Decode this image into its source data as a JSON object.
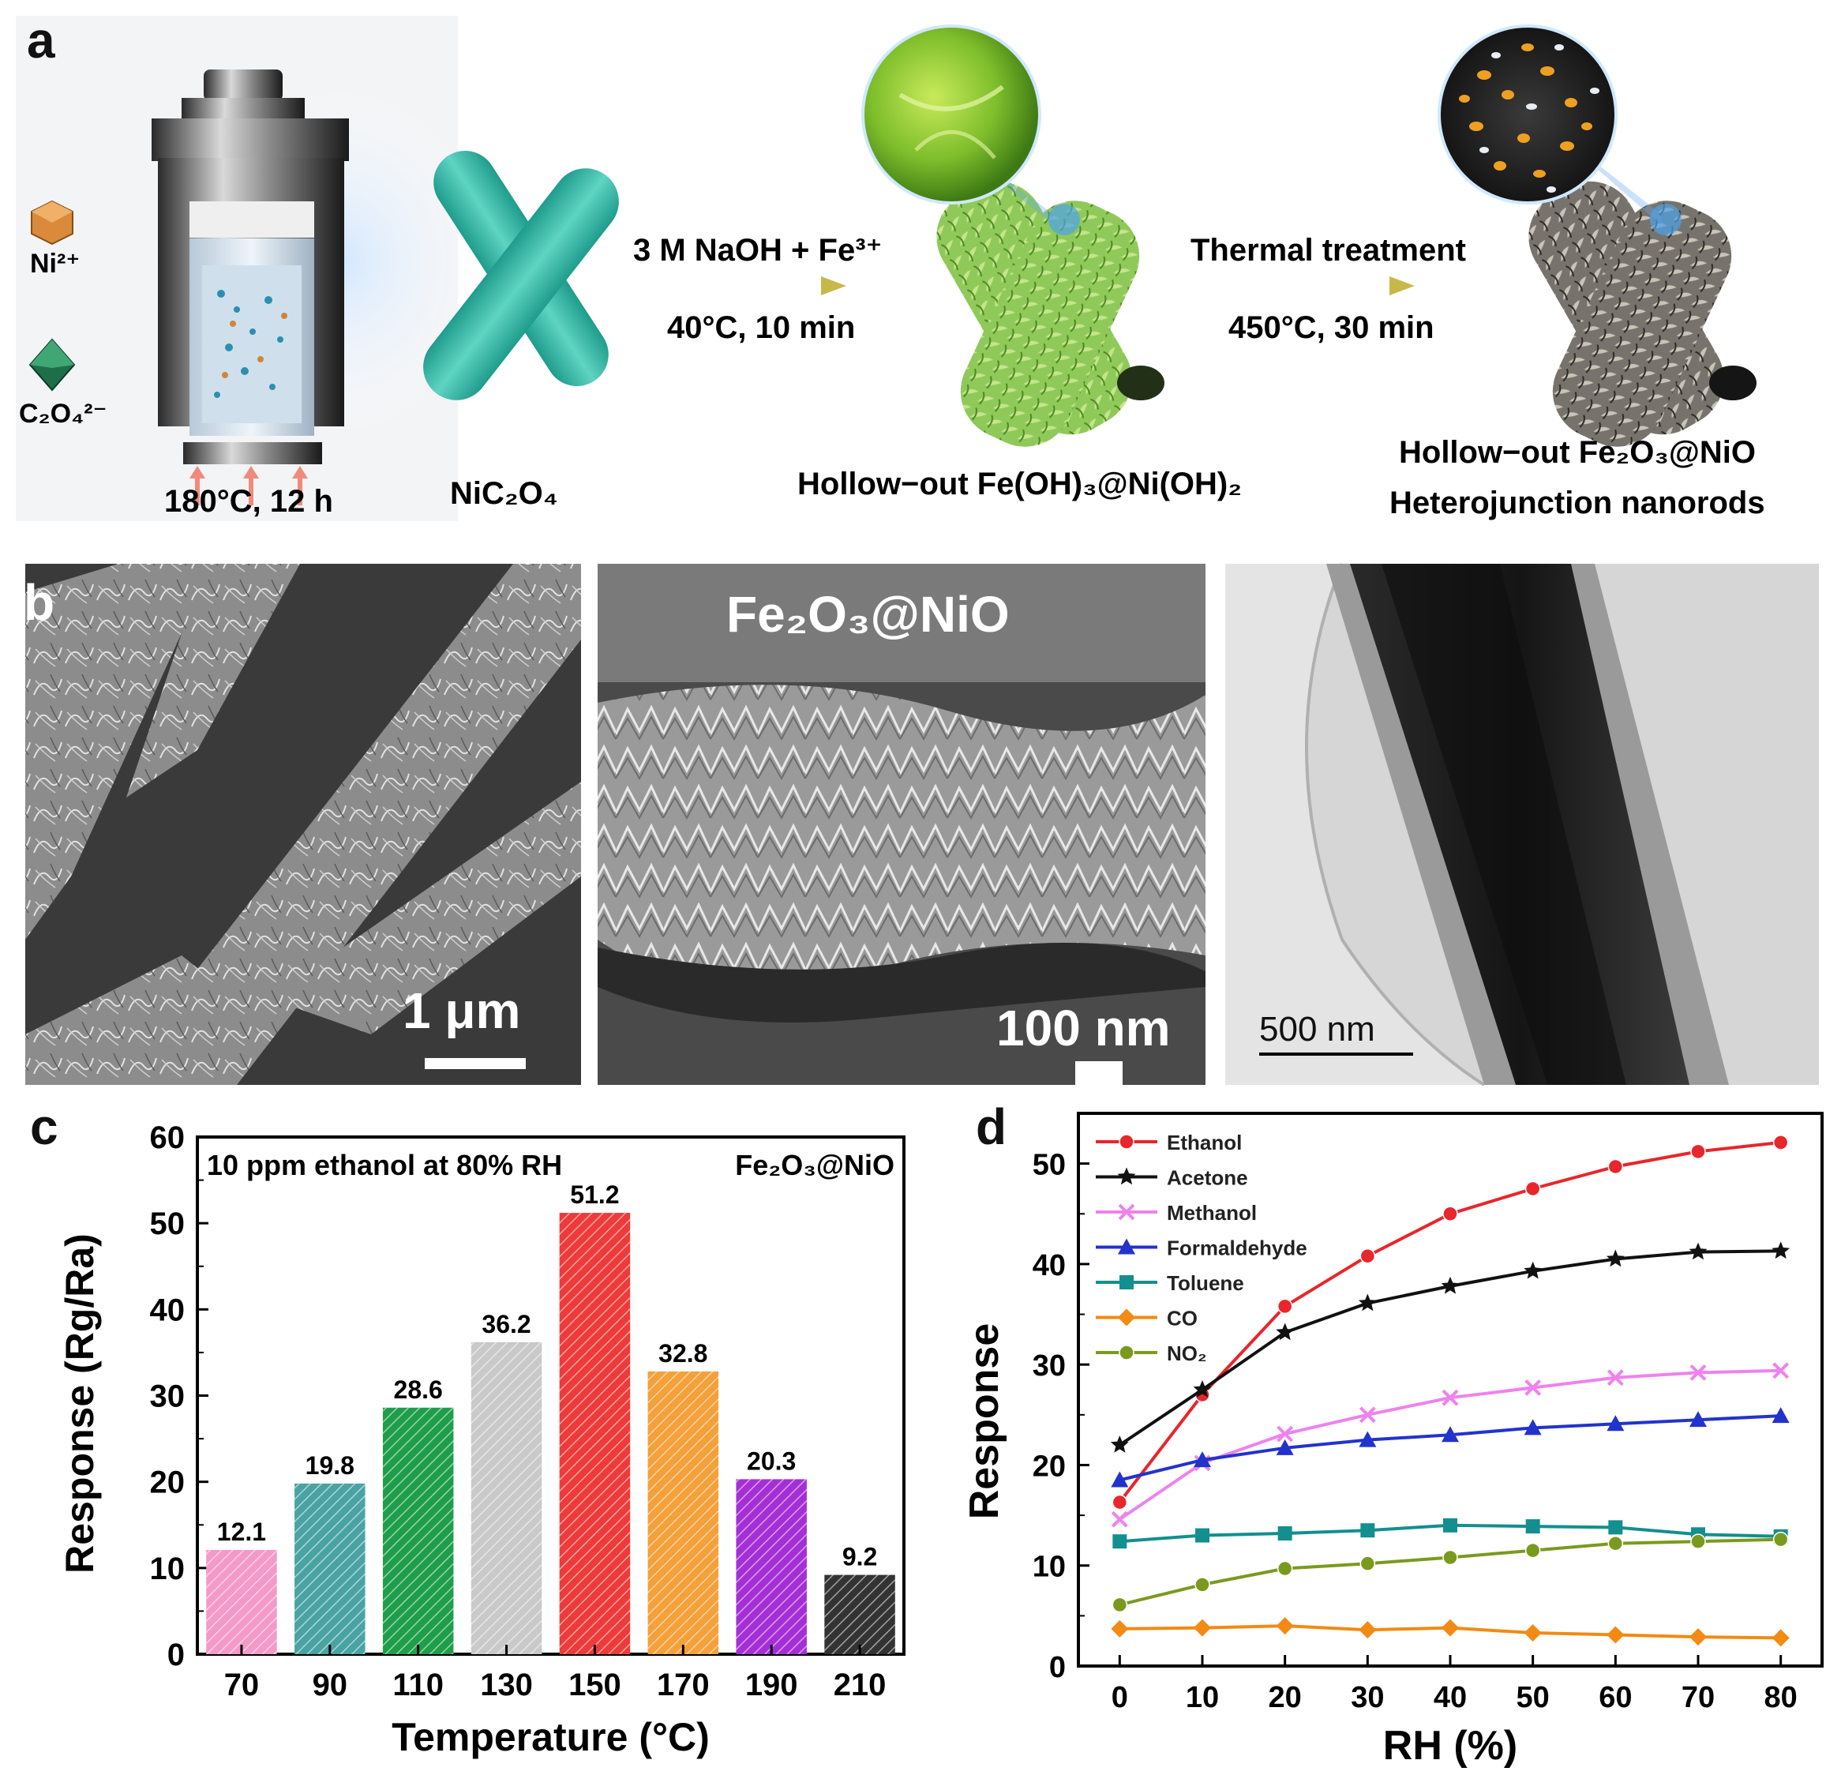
{
  "panels": {
    "a": "a",
    "b": "b",
    "c": "c",
    "d": "d"
  },
  "panel_a": {
    "ion_ni": "Ni²⁺",
    "ion_c2o4": "C₂O₄²⁻",
    "autoclave_condition": "180°C, 12 h",
    "rod_label": "NiC₂O₄",
    "step1_top": "3 M NaOH + Fe³⁺",
    "step1_bottom": "40°C, 10 min",
    "product1": "Hollow−out Fe(OH)₃@Ni(OH)₂",
    "step2_top": "Thermal treatment",
    "step2_bottom": "450°C, 30 min",
    "product2_line1": "Hollow−out Fe₂O₃@NiO",
    "product2_line2": "Heterojunction nanorods",
    "colors": {
      "rod": "#2cb5a5",
      "hydroxide": "#7fbf3c",
      "oxide": "#6b6b66",
      "dot_orange": "#f0a020",
      "arrow": "#c8b84a"
    }
  },
  "panel_b": {
    "sem1_scale": "1 μm",
    "sem2_title": "Fe₂O₃@NiO",
    "sem2_scale": "100 nm",
    "tem_scale": "500 nm"
  },
  "chart_data": [
    {
      "panel": "c",
      "type": "bar",
      "title_left": "10 ppm ethanol at 80% RH",
      "title_right": "Fe₂O₃@NiO",
      "xlabel": "Temperature (°C)",
      "ylabel": "Response (Rg/Ra)",
      "categories": [
        "70",
        "90",
        "110",
        "130",
        "150",
        "170",
        "190",
        "210"
      ],
      "values": [
        12.1,
        19.8,
        28.6,
        36.2,
        51.2,
        32.8,
        20.3,
        9.2
      ],
      "value_labels": [
        "12.1",
        "19.8",
        "28.6",
        "36.2",
        "51.2",
        "32.8",
        "20.3",
        "9.2"
      ],
      "bar_colors": [
        "#f49ac8",
        "#4aa3a3",
        "#1f9e4a",
        "#c9c9c9",
        "#ef3a3a",
        "#f6a03a",
        "#a52fd6",
        "#333333"
      ],
      "ylim": [
        0,
        60
      ],
      "yticks": [
        0,
        10,
        20,
        30,
        40,
        50,
        60
      ],
      "bar_style": "hatched"
    },
    {
      "panel": "d",
      "type": "line",
      "xlabel": "RH (%)",
      "ylabel": "Response",
      "x": [
        0,
        10,
        20,
        30,
        40,
        50,
        60,
        70,
        80
      ],
      "xticks": [
        0,
        10,
        20,
        30,
        40,
        50,
        60,
        70,
        80
      ],
      "ylim": [
        0,
        55
      ],
      "yticks": [
        0,
        10,
        20,
        30,
        40,
        50
      ],
      "legend_position": "top-left",
      "series": [
        {
          "name": "Ethanol",
          "color": "#e8262b",
          "marker": "circle",
          "values": [
            16.3,
            27.0,
            35.8,
            40.8,
            45.0,
            47.5,
            49.7,
            51.2,
            52.1
          ]
        },
        {
          "name": "Acetone",
          "color": "#111111",
          "marker": "star",
          "values": [
            22.0,
            27.5,
            33.2,
            36.1,
            37.8,
            39.3,
            40.5,
            41.2,
            41.3
          ]
        },
        {
          "name": "Methanol",
          "color": "#ee82ee",
          "marker": "x",
          "values": [
            14.6,
            20.2,
            23.1,
            25.0,
            26.7,
            27.7,
            28.7,
            29.2,
            29.4
          ]
        },
        {
          "name": "Formaldehyde",
          "color": "#2233cc",
          "marker": "triangle",
          "values": [
            18.5,
            20.5,
            21.7,
            22.5,
            23.0,
            23.7,
            24.1,
            24.5,
            24.9
          ]
        },
        {
          "name": "Toluene",
          "color": "#138f8f",
          "marker": "square",
          "values": [
            12.4,
            13.0,
            13.2,
            13.5,
            14.0,
            13.9,
            13.8,
            13.1,
            12.9
          ]
        },
        {
          "name": "CO",
          "color": "#f28a14",
          "marker": "diamond",
          "values": [
            3.7,
            3.8,
            4.0,
            3.6,
            3.8,
            3.3,
            3.1,
            2.9,
            2.8
          ]
        },
        {
          "name": "NO₂",
          "color": "#7a9a1e",
          "marker": "circle",
          "values": [
            6.1,
            8.1,
            9.7,
            10.2,
            10.8,
            11.5,
            12.2,
            12.4,
            12.6
          ]
        }
      ]
    }
  ]
}
